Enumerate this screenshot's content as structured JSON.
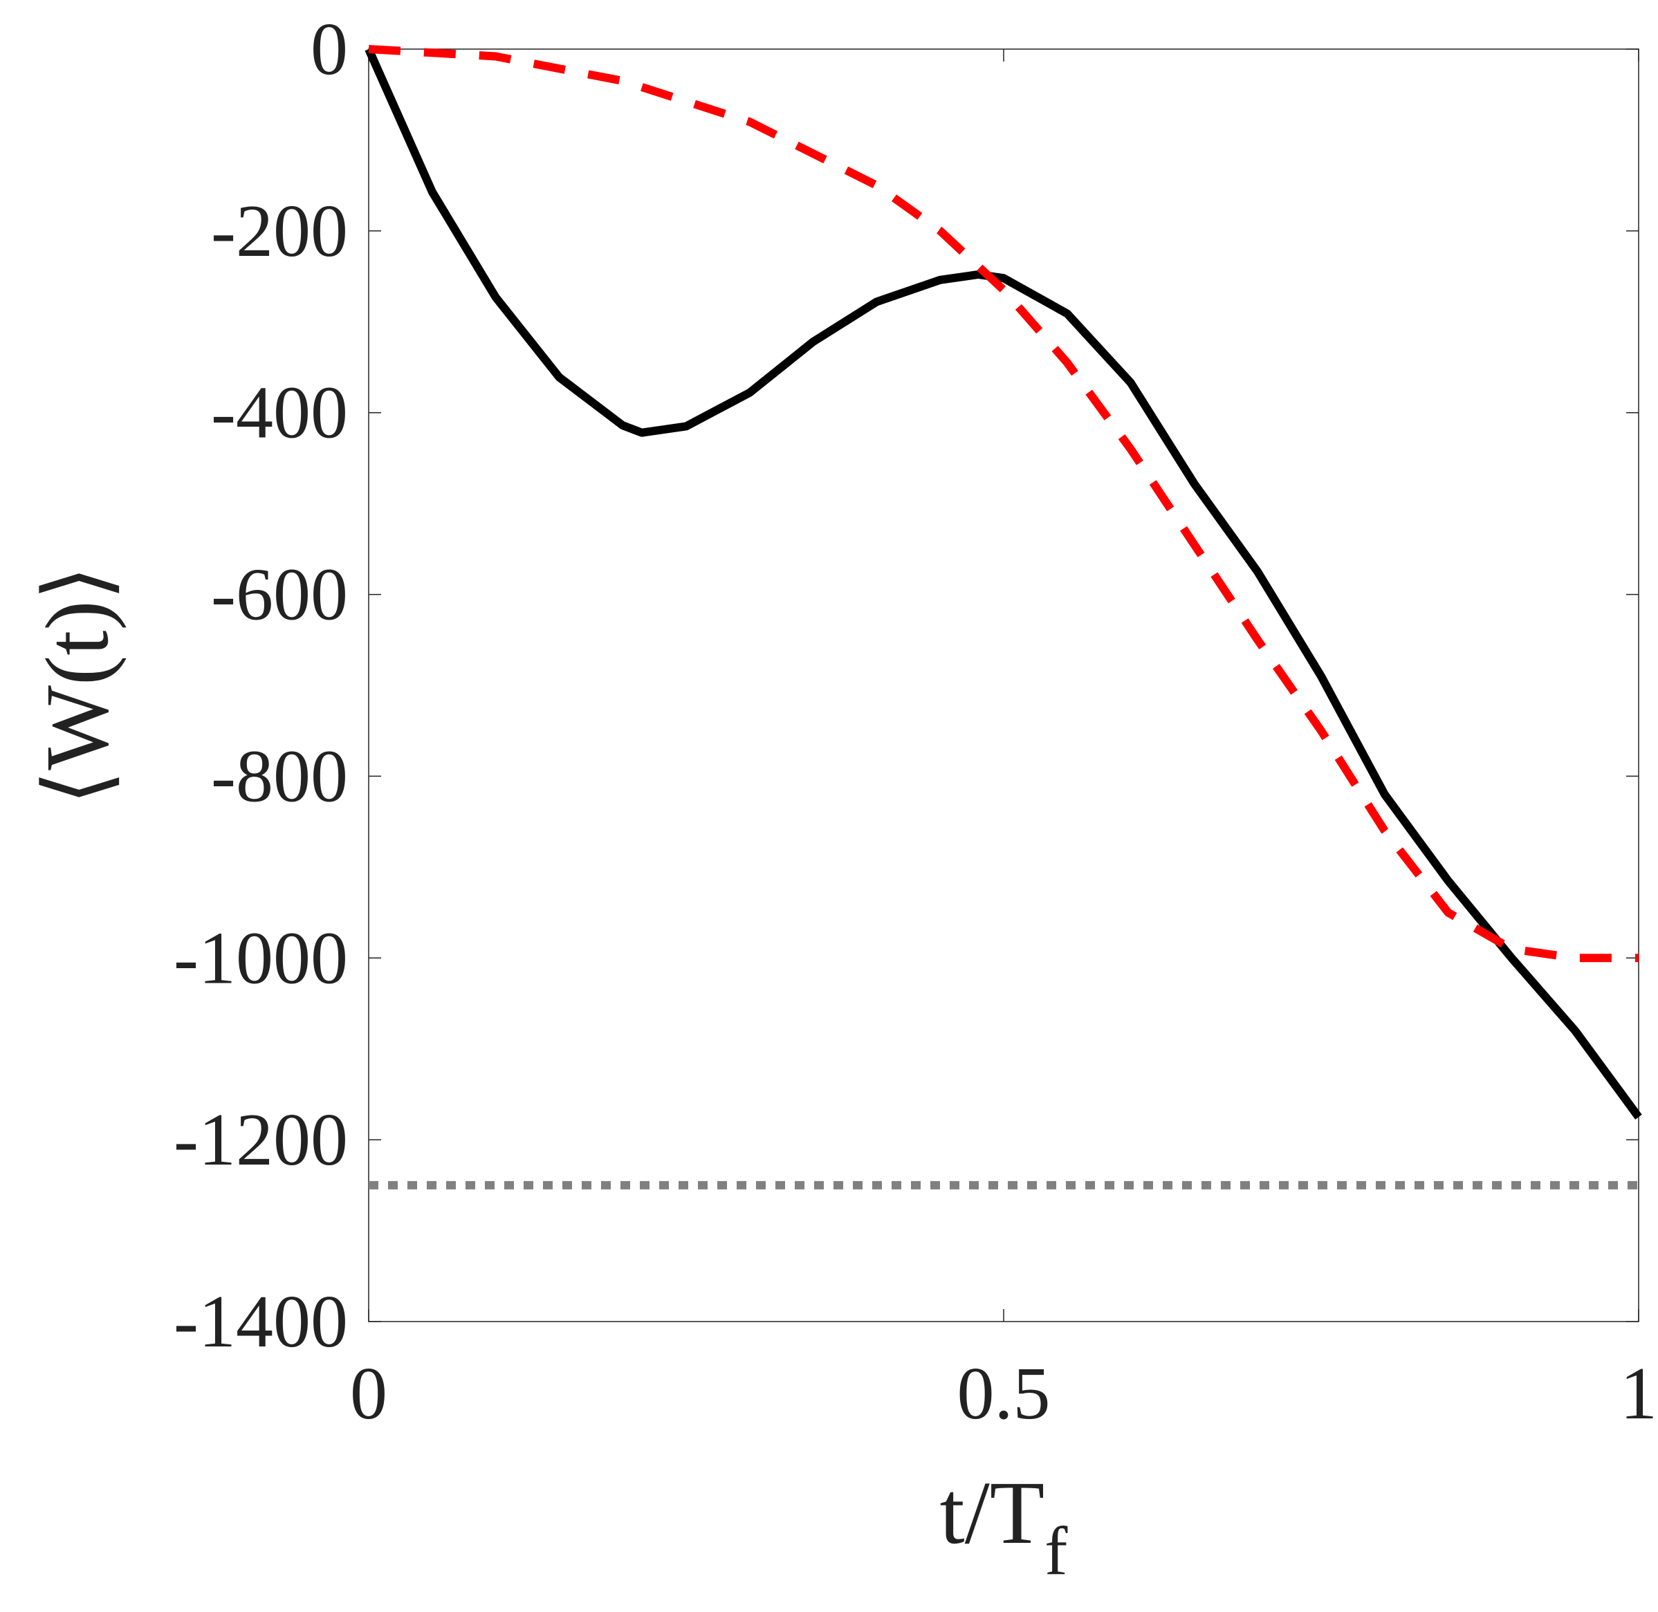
{
  "chart_data": {
    "type": "line",
    "xlabel": "t/T",
    "xlabel_subscript": "f",
    "ylabel": "⟨W(t)⟩",
    "xlim": [
      0,
      1
    ],
    "xticks": [
      0,
      0.5,
      1
    ],
    "ylim": [
      -1400,
      0
    ],
    "yticks": [
      -1400,
      -1200,
      -1000,
      -800,
      -600,
      -400,
      -200,
      0
    ],
    "grid": false,
    "series": [
      {
        "name": "solid",
        "color": "#000000",
        "dash": "solid",
        "x": [
          0,
          0.05,
          0.1,
          0.15,
          0.2,
          0.215,
          0.25,
          0.3,
          0.35,
          0.4,
          0.45,
          0.48,
          0.5,
          0.55,
          0.6,
          0.65,
          0.7,
          0.75,
          0.8,
          0.85,
          0.9,
          0.95,
          1
        ],
        "values": [
          0,
          -157,
          -273,
          -361,
          -414,
          -422,
          -415,
          -378,
          -322,
          -278,
          -254,
          -248,
          -252,
          -291,
          -367,
          -478,
          -575,
          -690,
          -820,
          -915,
          -1000,
          -1080,
          -1175
        ]
      },
      {
        "name": "dashed",
        "color": "#ff0000",
        "dash": "dashed",
        "x": [
          0,
          0.1,
          0.2,
          0.3,
          0.4,
          0.45,
          0.5,
          0.55,
          0.6,
          0.65,
          0.7,
          0.75,
          0.8,
          0.85,
          0.9,
          0.95,
          1
        ],
        "values": [
          0,
          -8,
          -35,
          -80,
          -150,
          -200,
          -265,
          -345,
          -440,
          -545,
          -650,
          -750,
          -860,
          -950,
          -990,
          -1000,
          -1000
        ]
      },
      {
        "name": "dotted",
        "color": "#808080",
        "dash": "dotted",
        "x": [
          0,
          1
        ],
        "values": [
          -1250,
          -1250
        ]
      }
    ]
  }
}
